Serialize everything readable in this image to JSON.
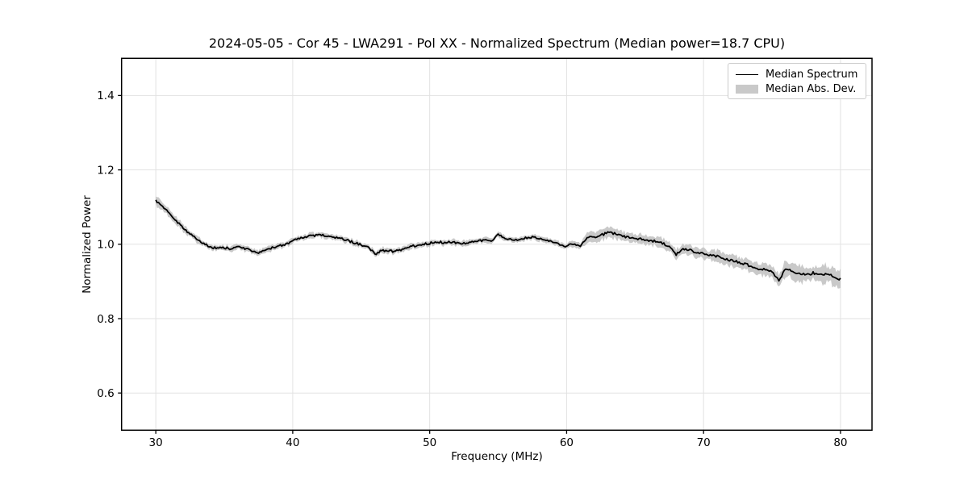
{
  "chart_data": {
    "type": "line",
    "title": "2024-05-05 - Cor 45 - LWA291 - Pol XX - Normalized Spectrum (Median power=18.7 CPU)",
    "xlabel": "Frequency (MHz)",
    "ylabel": "Normalized Power",
    "xlim": [
      27.5,
      82.3
    ],
    "ylim": [
      0.5,
      1.5
    ],
    "xticks": [
      30,
      40,
      50,
      60,
      70,
      80
    ],
    "yticks": [
      0.6,
      0.8,
      1.0,
      1.2,
      1.4
    ],
    "grid": true,
    "legend": {
      "position": "upper right",
      "entries": [
        {
          "label": "Median Spectrum",
          "type": "line",
          "color": "#000000"
        },
        {
          "label": "Median Abs. Dev.",
          "type": "patch",
          "color": "#c9c9c9"
        }
      ]
    },
    "series": [
      {
        "name": "Median Spectrum",
        "x_start": 30.0,
        "x_step": 0.5,
        "y": [
          1.118,
          1.102,
          1.082,
          1.063,
          1.044,
          1.028,
          1.013,
          1.001,
          0.992,
          0.989,
          0.99,
          0.988,
          0.992,
          0.988,
          0.982,
          0.977,
          0.984,
          0.991,
          0.995,
          1.001,
          1.009,
          1.015,
          1.021,
          1.022,
          1.025,
          1.023,
          1.019,
          1.015,
          1.01,
          1.004,
          0.999,
          0.994,
          0.972,
          0.984,
          0.982,
          0.981,
          0.986,
          0.992,
          0.997,
          0.999,
          1.003,
          1.006,
          1.005,
          1.005,
          1.004,
          1.003,
          1.006,
          1.008,
          1.012,
          1.01,
          1.027,
          1.014,
          1.012,
          1.012,
          1.016,
          1.018,
          1.017,
          1.013,
          1.006,
          0.999,
          0.994,
          1.002,
          0.996,
          1.019,
          1.019,
          1.024,
          1.031,
          1.029,
          1.023,
          1.019,
          1.016,
          1.014,
          1.01,
          1.008,
          1.002,
          0.996,
          0.972,
          0.988,
          0.984,
          0.977,
          0.974,
          0.971,
          0.967,
          0.961,
          0.957,
          0.952,
          0.947,
          0.941,
          0.934,
          0.932,
          0.928,
          0.903,
          0.934,
          0.926,
          0.921,
          0.917,
          0.923,
          0.917,
          0.921,
          0.913,
          0.906
        ]
      },
      {
        "name": "Median Abs. Dev.",
        "x_start": 30.0,
        "x_step": 0.5,
        "half_width": [
          0.012,
          0.011,
          0.011,
          0.01,
          0.01,
          0.009,
          0.009,
          0.007,
          0.007,
          0.007,
          0.007,
          0.007,
          0.007,
          0.007,
          0.007,
          0.007,
          0.007,
          0.007,
          0.007,
          0.007,
          0.007,
          0.007,
          0.007,
          0.007,
          0.007,
          0.007,
          0.007,
          0.007,
          0.007,
          0.007,
          0.007,
          0.007,
          0.008,
          0.008,
          0.007,
          0.007,
          0.007,
          0.007,
          0.007,
          0.007,
          0.007,
          0.007,
          0.007,
          0.007,
          0.007,
          0.007,
          0.007,
          0.007,
          0.007,
          0.007,
          0.007,
          0.007,
          0.007,
          0.007,
          0.007,
          0.007,
          0.007,
          0.007,
          0.007,
          0.007,
          0.007,
          0.008,
          0.009,
          0.012,
          0.013,
          0.013,
          0.013,
          0.013,
          0.013,
          0.012,
          0.012,
          0.012,
          0.012,
          0.012,
          0.012,
          0.012,
          0.013,
          0.012,
          0.012,
          0.012,
          0.013,
          0.013,
          0.014,
          0.014,
          0.014,
          0.015,
          0.015,
          0.015,
          0.016,
          0.016,
          0.017,
          0.019,
          0.02,
          0.02,
          0.021,
          0.021,
          0.022,
          0.022,
          0.023,
          0.023,
          0.024
        ]
      }
    ],
    "noise_texture": {
      "seed": 1234567,
      "amplitude": 0.0032,
      "step_mhz": 0.1
    }
  },
  "colors": {
    "line": "#000000",
    "band": "#c9c9c9",
    "grid": "#e2e2e2",
    "spine": "#000000",
    "background": "#ffffff"
  }
}
